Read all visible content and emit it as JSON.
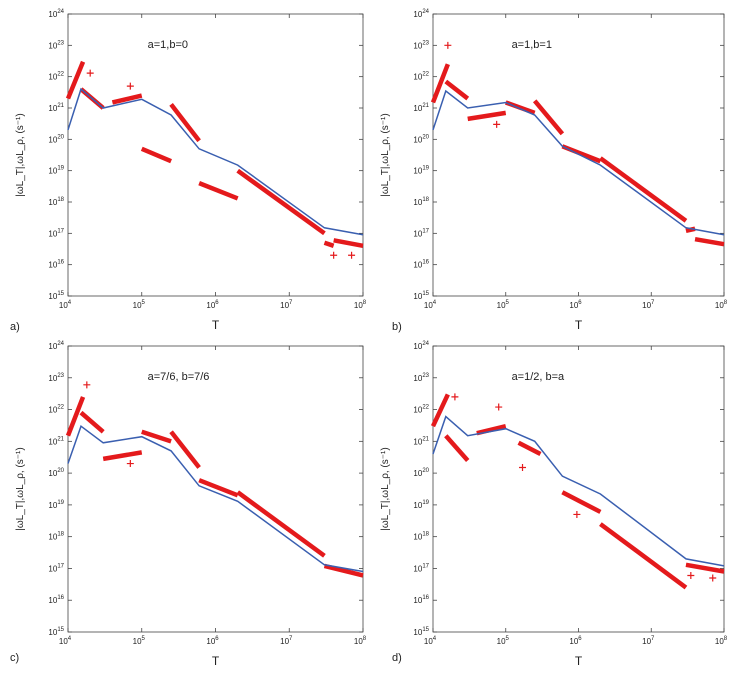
{
  "figure": {
    "line_color": "#3a5fb0",
    "red_color": "#e41a1c",
    "axis_color": "#444444"
  },
  "chart_data": [
    {
      "panel_label": "a)",
      "type": "line",
      "title": "a=1,b=0",
      "xlabel": "T",
      "ylabel": "|ωL_T|,ωL_ρ, (s⁻¹)",
      "x_scale": "log",
      "y_scale": "log",
      "xlim": [
        10000,
        100000000
      ],
      "ylim": [
        1000000000000000.0,
        1e+24
      ],
      "x_ticks": [
        {
          "base": "10",
          "exp": "4"
        },
        {
          "base": "10",
          "exp": "5"
        },
        {
          "base": "10",
          "exp": "6"
        },
        {
          "base": "10",
          "exp": "7"
        },
        {
          "base": "10",
          "exp": "8"
        }
      ],
      "y_ticks": [
        {
          "base": "10",
          "exp": "15"
        },
        {
          "base": "10",
          "exp": "16"
        },
        {
          "base": "10",
          "exp": "17"
        },
        {
          "base": "10",
          "exp": "18"
        },
        {
          "base": "10",
          "exp": "19"
        },
        {
          "base": "10",
          "exp": "20"
        },
        {
          "base": "10",
          "exp": "21"
        },
        {
          "base": "10",
          "exp": "22"
        },
        {
          "base": "10",
          "exp": "23"
        },
        {
          "base": "10",
          "exp": "24"
        }
      ],
      "blue_line": [
        [
          10000,
          2e+20
        ],
        [
          15000,
          4e+21
        ],
        [
          30000,
          1e+21
        ],
        [
          100000,
          1.9e+21
        ],
        [
          250000,
          6e+20
        ],
        [
          600000,
          5e+19
        ],
        [
          2000000,
          1.5e+19
        ],
        [
          30000000,
          1.5e+17
        ],
        [
          100000000,
          9e+16
        ]
      ],
      "red_segments": [
        [
          [
            10000,
            2e+21
          ],
          [
            16000,
            3e+22
          ]
        ],
        [
          [
            15000,
            4e+21
          ],
          [
            30000,
            1e+21
          ]
        ],
        [
          [
            40000,
            1.5e+21
          ],
          [
            100000,
            2.5e+21
          ]
        ],
        [
          [
            250000,
            1.3e+21
          ],
          [
            600000,
            9e+19
          ]
        ],
        [
          [
            100000,
            5e+19
          ],
          [
            250000,
            2e+19
          ]
        ],
        [
          [
            600000,
            4e+18
          ],
          [
            2000000,
            1.3e+18
          ]
        ],
        [
          [
            2000000,
            1e+19
          ],
          [
            30000000,
            1e+17
          ]
        ],
        [
          [
            30000000,
            5e+16
          ],
          [
            40000000,
            4e+16
          ]
        ],
        [
          [
            40000000,
            6e+16
          ],
          [
            100000000,
            4e+16
          ]
        ]
      ],
      "red_points": [
        [
          20000,
          1.3e+22
        ],
        [
          70000,
          5e+21
        ],
        [
          40000000,
          2e+16
        ],
        [
          70000000,
          2e+16
        ]
      ]
    },
    {
      "panel_label": "b)",
      "type": "line",
      "title": "a=1,b=1",
      "xlabel": "T",
      "ylabel": "|ωL_T|,ωL_ρ, (s⁻¹)",
      "x_scale": "log",
      "y_scale": "log",
      "xlim": [
        10000,
        100000000
      ],
      "ylim": [
        1000000000000000.0,
        1e+24
      ],
      "x_ticks": [
        {
          "base": "10",
          "exp": "4"
        },
        {
          "base": "10",
          "exp": "5"
        },
        {
          "base": "10",
          "exp": "6"
        },
        {
          "base": "10",
          "exp": "7"
        },
        {
          "base": "10",
          "exp": "8"
        }
      ],
      "y_ticks": [
        {
          "base": "10",
          "exp": "15"
        },
        {
          "base": "10",
          "exp": "16"
        },
        {
          "base": "10",
          "exp": "17"
        },
        {
          "base": "10",
          "exp": "18"
        },
        {
          "base": "10",
          "exp": "19"
        },
        {
          "base": "10",
          "exp": "20"
        },
        {
          "base": "10",
          "exp": "21"
        },
        {
          "base": "10",
          "exp": "22"
        },
        {
          "base": "10",
          "exp": "23"
        },
        {
          "base": "10",
          "exp": "24"
        }
      ],
      "blue_line": [
        [
          10000,
          2e+20
        ],
        [
          15000,
          3.5e+21
        ],
        [
          30000,
          1e+21
        ],
        [
          100000,
          1.5e+21
        ],
        [
          250000,
          6e+20
        ],
        [
          600000,
          6e+19
        ],
        [
          2000000,
          1.5e+19
        ],
        [
          30000000,
          1.5e+17
        ],
        [
          100000000,
          9e+16
        ]
      ],
      "red_segments": [
        [
          [
            10000,
            1.5e+21
          ],
          [
            16000,
            2.5e+22
          ]
        ],
        [
          [
            15000,
            7e+21
          ],
          [
            30000,
            2e+21
          ]
        ],
        [
          [
            30000,
            4.5e+20
          ],
          [
            100000,
            7e+20
          ]
        ],
        [
          [
            100000,
            1.5e+21
          ],
          [
            250000,
            7e+20
          ]
        ],
        [
          [
            250000,
            1.7e+21
          ],
          [
            600000,
            1.5e+20
          ]
        ],
        [
          [
            600000,
            6e+19
          ],
          [
            2000000,
            2e+19
          ]
        ],
        [
          [
            2000000,
            2.5e+19
          ],
          [
            30000000,
            2.5e+17
          ]
        ],
        [
          [
            30000000,
            1.2e+17
          ],
          [
            40000000,
            1.4e+17
          ]
        ],
        [
          [
            40000000,
            6.5e+16
          ],
          [
            100000000,
            4.5e+16
          ]
        ]
      ],
      "red_points": [
        [
          16000,
          1e+23
        ],
        [
          75000,
          3e+20
        ]
      ]
    },
    {
      "panel_label": "c)",
      "type": "line",
      "title": "a=7/6, b=7/6",
      "xlabel": "T",
      "ylabel": "|ωL_T|,ωL_ρ, (s⁻¹)",
      "x_scale": "log",
      "y_scale": "log",
      "xlim": [
        10000,
        100000000
      ],
      "ylim": [
        1000000000000000.0,
        1e+24
      ],
      "x_ticks": [
        {
          "base": "10",
          "exp": "4"
        },
        {
          "base": "10",
          "exp": "5"
        },
        {
          "base": "10",
          "exp": "6"
        },
        {
          "base": "10",
          "exp": "7"
        },
        {
          "base": "10",
          "exp": "8"
        }
      ],
      "y_ticks": [
        {
          "base": "10",
          "exp": "15"
        },
        {
          "base": "10",
          "exp": "16"
        },
        {
          "base": "10",
          "exp": "17"
        },
        {
          "base": "10",
          "exp": "18"
        },
        {
          "base": "10",
          "exp": "19"
        },
        {
          "base": "10",
          "exp": "20"
        },
        {
          "base": "10",
          "exp": "21"
        },
        {
          "base": "10",
          "exp": "22"
        },
        {
          "base": "10",
          "exp": "23"
        },
        {
          "base": "10",
          "exp": "24"
        }
      ],
      "blue_line": [
        [
          10000,
          2e+20
        ],
        [
          15000,
          3e+21
        ],
        [
          30000,
          9e+20
        ],
        [
          100000,
          1.4e+21
        ],
        [
          250000,
          5e+20
        ],
        [
          600000,
          4e+19
        ],
        [
          2000000,
          1.3e+19
        ],
        [
          30000000,
          1.3e+17
        ],
        [
          100000000,
          8e+16
        ]
      ],
      "red_segments": [
        [
          [
            10000,
            1.5e+21
          ],
          [
            16000,
            2.5e+22
          ]
        ],
        [
          [
            15000,
            8e+21
          ],
          [
            30000,
            2e+21
          ]
        ],
        [
          [
            30000,
            2.8e+20
          ],
          [
            100000,
            4.5e+20
          ]
        ],
        [
          [
            100000,
            2e+21
          ],
          [
            250000,
            1e+21
          ]
        ],
        [
          [
            250000,
            2e+21
          ],
          [
            600000,
            1.5e+20
          ]
        ],
        [
          [
            600000,
            6e+19
          ],
          [
            2000000,
            2e+19
          ]
        ],
        [
          [
            2000000,
            2.5e+19
          ],
          [
            30000000,
            2.5e+17
          ]
        ],
        [
          [
            30000000,
            1.2e+17
          ],
          [
            100000000,
            6e+16
          ]
        ]
      ],
      "red_points": [
        [
          18000,
          6e+22
        ],
        [
          70000,
          2e+20
        ]
      ]
    },
    {
      "panel_label": "d)",
      "type": "line",
      "title": "a=1/2, b=a",
      "xlabel": "T",
      "ylabel": "|ωL_T|,ωL_ρ, (s⁻¹)",
      "x_scale": "log",
      "y_scale": "log",
      "xlim": [
        10000,
        100000000
      ],
      "ylim": [
        1000000000000000.0,
        1e+24
      ],
      "x_ticks": [
        {
          "base": "10",
          "exp": "4"
        },
        {
          "base": "10",
          "exp": "5"
        },
        {
          "base": "10",
          "exp": "6"
        },
        {
          "base": "10",
          "exp": "7"
        },
        {
          "base": "10",
          "exp": "8"
        }
      ],
      "y_ticks": [
        {
          "base": "10",
          "exp": "15"
        },
        {
          "base": "10",
          "exp": "16"
        },
        {
          "base": "10",
          "exp": "17"
        },
        {
          "base": "10",
          "exp": "18"
        },
        {
          "base": "10",
          "exp": "19"
        },
        {
          "base": "10",
          "exp": "20"
        },
        {
          "base": "10",
          "exp": "21"
        },
        {
          "base": "10",
          "exp": "22"
        },
        {
          "base": "10",
          "exp": "23"
        },
        {
          "base": "10",
          "exp": "24"
        }
      ],
      "blue_line": [
        [
          10000,
          4e+20
        ],
        [
          15000,
          6e+21
        ],
        [
          30000,
          1.5e+21
        ],
        [
          100000,
          2.5e+21
        ],
        [
          250000,
          1e+21
        ],
        [
          600000,
          8e+19
        ],
        [
          2000000,
          2.2e+19
        ],
        [
          30000000,
          2e+17
        ],
        [
          100000000,
          1.2e+17
        ]
      ],
      "red_segments": [
        [
          [
            10000,
            3e+21
          ],
          [
            16000,
            3e+22
          ]
        ],
        [
          [
            15000,
            1.5e+21
          ],
          [
            30000,
            2.5e+20
          ]
        ],
        [
          [
            40000,
            1.8e+21
          ],
          [
            100000,
            3e+21
          ]
        ],
        [
          [
            150000,
            9e+20
          ],
          [
            300000,
            4e+20
          ]
        ],
        [
          [
            600000,
            2.5e+19
          ],
          [
            2000000,
            6e+18
          ]
        ],
        [
          [
            2000000,
            2.5e+18
          ],
          [
            30000000,
            2.5e+16
          ]
        ],
        [
          [
            30000000,
            1.3e+17
          ],
          [
            100000000,
            8e+16
          ]
        ]
      ],
      "red_points": [
        [
          20000,
          2.5e+22
        ],
        [
          80000,
          1.2e+22
        ],
        [
          170000,
          1.5e+20
        ],
        [
          950000,
          5e+18
        ],
        [
          35000000,
          6e+16
        ],
        [
          70000000,
          5e+16
        ]
      ]
    }
  ]
}
